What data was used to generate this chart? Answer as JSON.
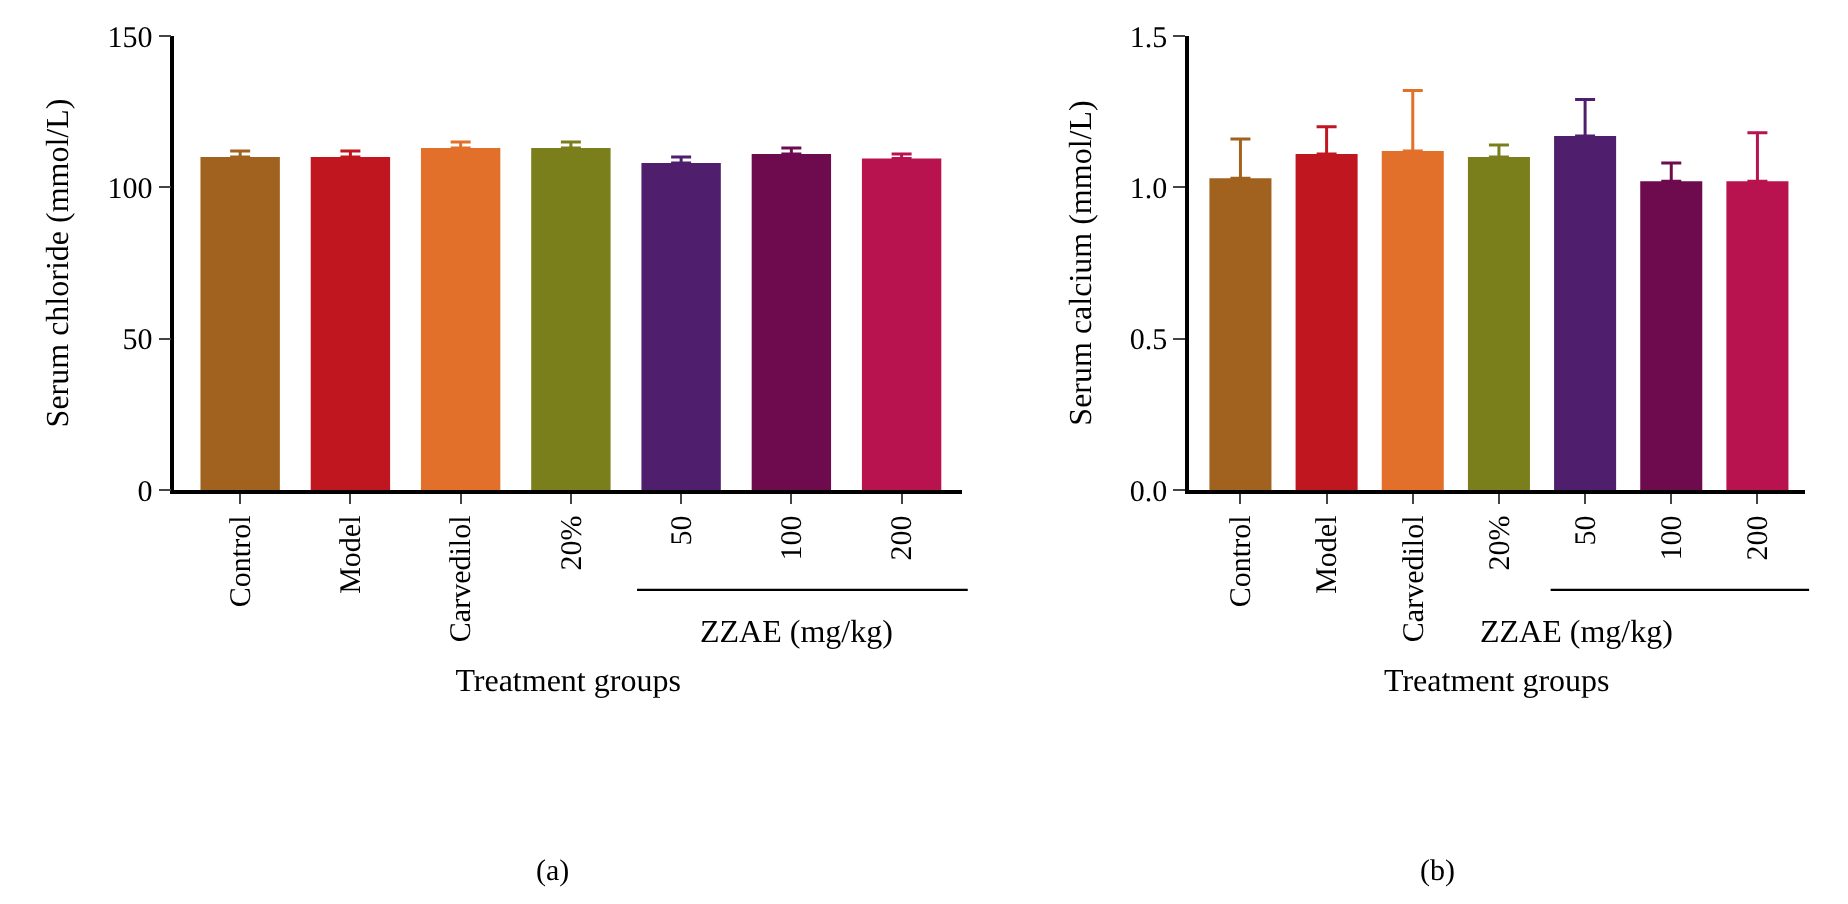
{
  "chart_data": [
    {
      "type": "bar",
      "ylabel": "Serum chloride (mmol/L)",
      "xlabel": "Treatment groups",
      "categories": [
        "Control",
        "Model",
        "Carvedilol",
        "20%",
        "50",
        "100",
        "200"
      ],
      "values": [
        110,
        110,
        113,
        113,
        108,
        111,
        109.5
      ],
      "errors": [
        [
          110,
          112
        ],
        [
          110,
          112
        ],
        [
          113,
          115
        ],
        [
          113,
          115
        ],
        [
          108,
          110
        ],
        [
          111,
          113
        ],
        [
          109.5,
          111
        ]
      ],
      "colors": [
        "#a0621e",
        "#c0161f",
        "#e2702a",
        "#7a7f1c",
        "#4f1f6e",
        "#6e0a4e",
        "#b8124f"
      ],
      "ylim": [
        0,
        150
      ],
      "yticks": [
        0,
        50,
        100,
        150
      ],
      "annotations": [
        "ZZAE (mg/kg)",
        "(a)"
      ]
    },
    {
      "type": "bar",
      "ylabel": "Serum calcium (mmol/L)",
      "xlabel": "Treatment groups",
      "categories": [
        "Control",
        "Model",
        "Carvedilol",
        "20%",
        "50",
        "100",
        "200"
      ],
      "values": [
        1.03,
        1.11,
        1.12,
        1.1,
        1.17,
        1.02,
        1.02
      ],
      "errors": [
        [
          1.03,
          1.16
        ],
        [
          1.11,
          1.2
        ],
        [
          1.12,
          1.32
        ],
        [
          1.1,
          1.14
        ],
        [
          1.17,
          1.29
        ],
        [
          1.02,
          1.08
        ],
        [
          1.02,
          1.18
        ]
      ],
      "colors": [
        "#a0621e",
        "#c0161f",
        "#e2702a",
        "#7a7f1c",
        "#4f1f6e",
        "#6e0a4e",
        "#b8124f"
      ],
      "ylim": [
        0,
        1.5
      ],
      "yticks": [
        {
          "value": 0,
          "label": "0.0"
        },
        0.5,
        {
          "value": 1,
          "label": "1.0"
        },
        1.5
      ],
      "annotations": [
        "ZZAE (mg/kg)",
        "(b)"
      ]
    }
  ]
}
